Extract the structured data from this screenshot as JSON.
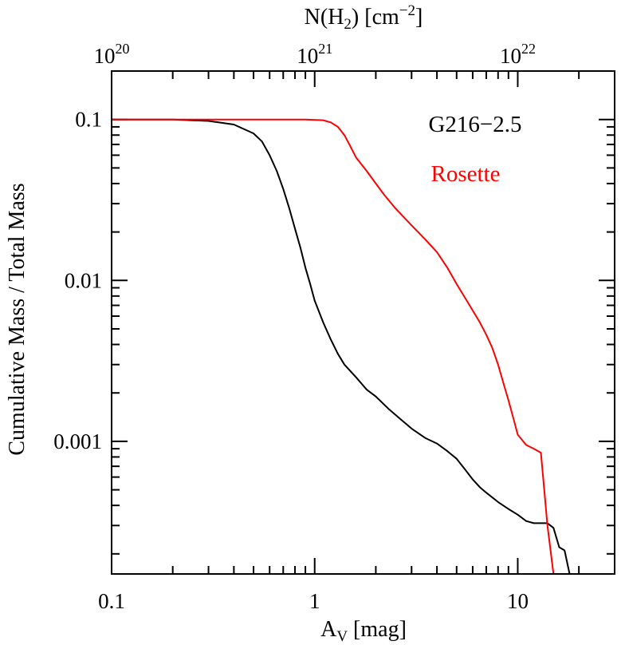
{
  "chart_data": {
    "type": "line",
    "xscale": "log",
    "yscale": "log",
    "xlim": [
      0.1,
      30
    ],
    "ylim": [
      0.00015,
      0.2
    ],
    "xlabel": {
      "main": "A",
      "sub": "V",
      "rest": " [mag]"
    },
    "ylabel": "Cumulative Mass / Total Mass",
    "top_axis": {
      "label": {
        "main": "N(H",
        "sub": "2",
        "mid": ") [cm",
        "sup": "−2",
        "end": "]"
      },
      "ticks": [
        {
          "av": 0.1,
          "base": "10",
          "exp": "20"
        },
        {
          "av": 1.0,
          "base": "10",
          "exp": "21"
        },
        {
          "av": 10.0,
          "base": "10",
          "exp": "22"
        }
      ]
    },
    "xticks": [
      {
        "value": 0.1,
        "label": "0.1"
      },
      {
        "value": 1,
        "label": "1"
      },
      {
        "value": 10,
        "label": "10"
      }
    ],
    "yticks": [
      {
        "value": 0.1,
        "label": "0.1"
      },
      {
        "value": 0.01,
        "label": "0.01"
      },
      {
        "value": 0.001,
        "label": "0.001"
      }
    ],
    "series": [
      {
        "name": "G216−2.5",
        "color": "#000000",
        "points": [
          [
            0.1,
            0.1
          ],
          [
            0.2,
            0.1
          ],
          [
            0.3,
            0.098
          ],
          [
            0.4,
            0.093
          ],
          [
            0.5,
            0.082
          ],
          [
            0.55,
            0.073
          ],
          [
            0.6,
            0.06
          ],
          [
            0.65,
            0.048
          ],
          [
            0.7,
            0.037
          ],
          [
            0.75,
            0.028
          ],
          [
            0.8,
            0.021
          ],
          [
            0.85,
            0.016
          ],
          [
            0.9,
            0.012
          ],
          [
            0.95,
            0.0095
          ],
          [
            1.0,
            0.0075
          ],
          [
            1.1,
            0.0055
          ],
          [
            1.2,
            0.0043
          ],
          [
            1.3,
            0.0035
          ],
          [
            1.4,
            0.003
          ],
          [
            1.6,
            0.0025
          ],
          [
            1.8,
            0.0021
          ],
          [
            2.0,
            0.0019
          ],
          [
            2.3,
            0.0016
          ],
          [
            2.6,
            0.0014
          ],
          [
            3.0,
            0.0012
          ],
          [
            3.5,
            0.00105
          ],
          [
            4.0,
            0.00097
          ],
          [
            4.5,
            0.00087
          ],
          [
            5.0,
            0.00078
          ],
          [
            5.5,
            0.00067
          ],
          [
            6.0,
            0.00058
          ],
          [
            6.5,
            0.00052
          ],
          [
            7.0,
            0.00048
          ],
          [
            8.0,
            0.00042
          ],
          [
            9.0,
            0.00038
          ],
          [
            10.0,
            0.00035
          ],
          [
            11.0,
            0.00032
          ],
          [
            12.0,
            0.00031
          ],
          [
            14.0,
            0.00031
          ],
          [
            15.0,
            0.00029
          ],
          [
            16.0,
            0.00022
          ],
          [
            17.0,
            0.00021
          ],
          [
            18.0,
            0.00015
          ]
        ]
      },
      {
        "name": "Rosette",
        "color": "#ff0000",
        "points": [
          [
            0.1,
            0.1
          ],
          [
            0.5,
            0.1
          ],
          [
            0.9,
            0.1
          ],
          [
            1.1,
            0.099
          ],
          [
            1.2,
            0.096
          ],
          [
            1.3,
            0.09
          ],
          [
            1.4,
            0.08
          ],
          [
            1.5,
            0.068
          ],
          [
            1.6,
            0.058
          ],
          [
            1.8,
            0.048
          ],
          [
            2.0,
            0.04
          ],
          [
            2.2,
            0.034
          ],
          [
            2.5,
            0.028
          ],
          [
            3.0,
            0.022
          ],
          [
            3.5,
            0.018
          ],
          [
            4.0,
            0.015
          ],
          [
            4.5,
            0.012
          ],
          [
            5.0,
            0.0095
          ],
          [
            5.5,
            0.0078
          ],
          [
            6.0,
            0.0065
          ],
          [
            6.5,
            0.0055
          ],
          [
            7.0,
            0.0046
          ],
          [
            7.5,
            0.0038
          ],
          [
            8.0,
            0.003
          ],
          [
            8.5,
            0.0023
          ],
          [
            9.0,
            0.0018
          ],
          [
            9.5,
            0.0014
          ],
          [
            10.0,
            0.0011
          ],
          [
            11.0,
            0.00095
          ],
          [
            12.0,
            0.0009
          ],
          [
            13.0,
            0.00085
          ],
          [
            13.5,
            0.0005
          ],
          [
            14.0,
            0.0003
          ],
          [
            15.0,
            0.00015
          ]
        ]
      }
    ],
    "legend": {
      "placement": "top-right",
      "entries": [
        "G216−2.5",
        "Rosette"
      ]
    }
  }
}
